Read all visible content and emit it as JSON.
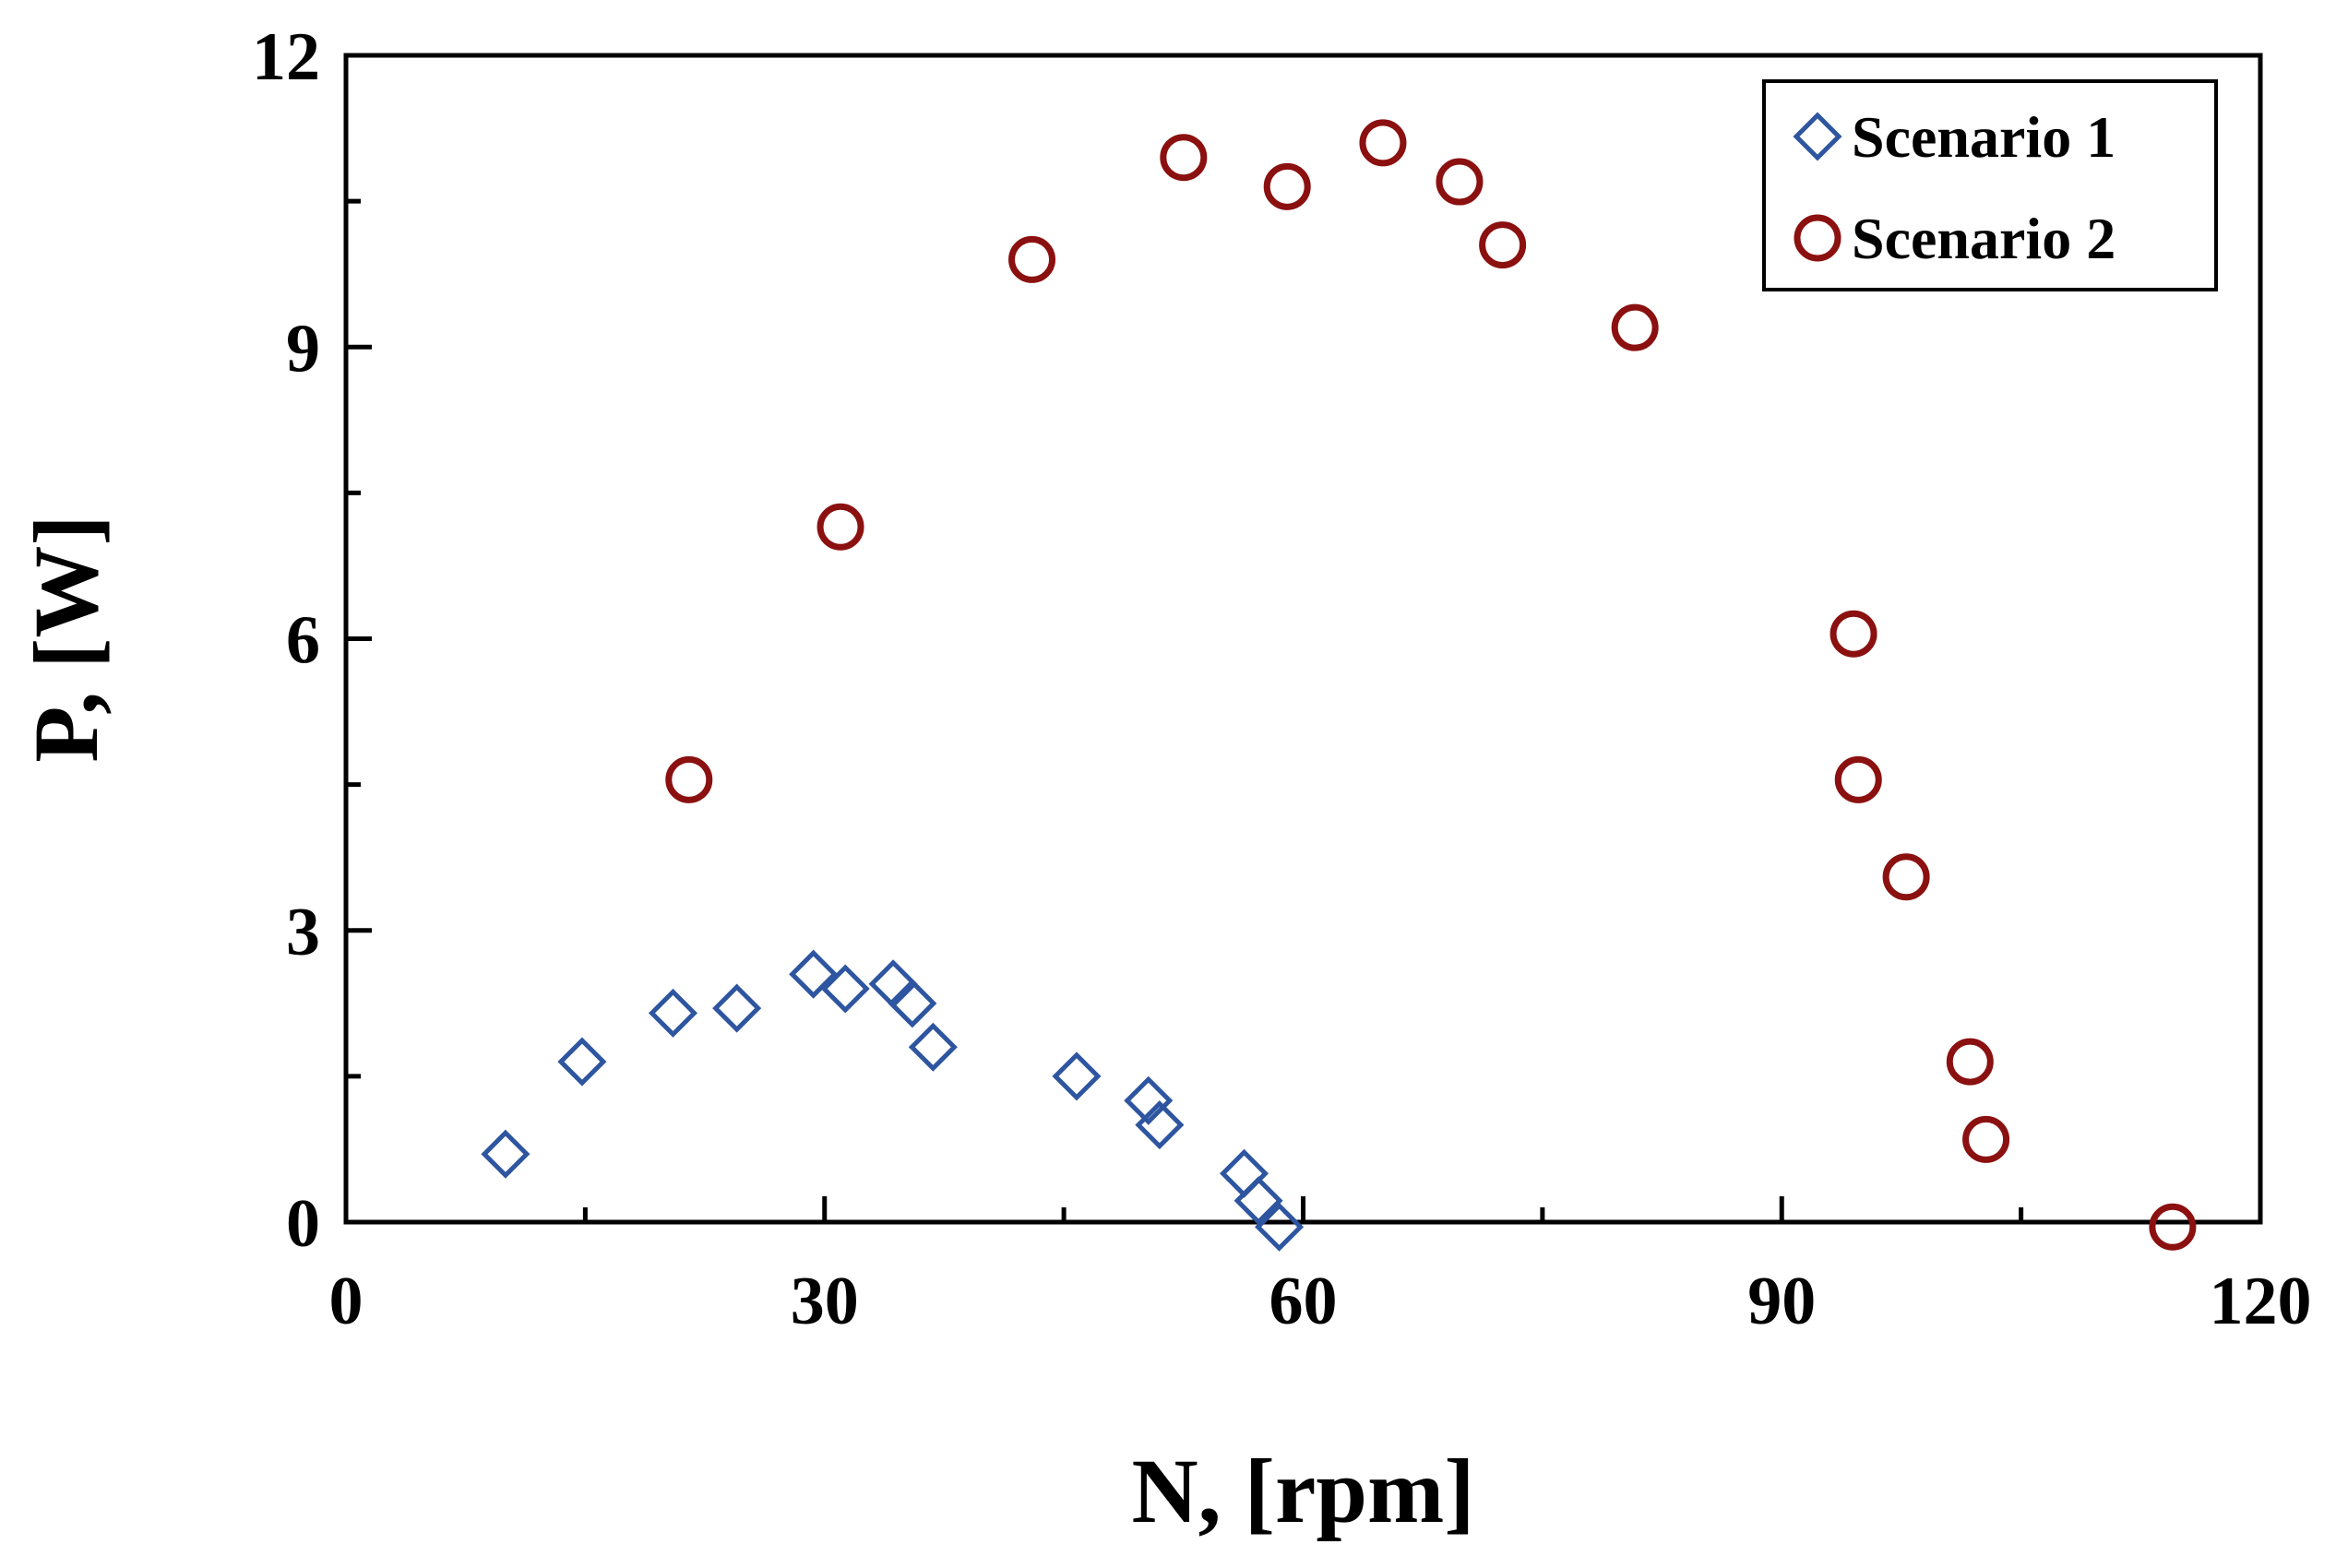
{
  "chart_data": {
    "type": "scatter",
    "title": "",
    "xlabel": "N, [rpm]",
    "ylabel": "P, [W]",
    "xlim": [
      0,
      120
    ],
    "ylim": [
      0,
      12
    ],
    "xticks": [
      0,
      30,
      60,
      90,
      120
    ],
    "yticks": [
      0,
      3,
      6,
      9,
      12
    ],
    "xtick_labels": [
      "0",
      "30",
      "60",
      "90",
      "120"
    ],
    "ytick_labels": [
      "0",
      "3",
      "6",
      "9",
      "12"
    ],
    "x_minor_step": 15,
    "y_minor_step": 1.5,
    "grid": false,
    "legend_position": "top-right",
    "series": [
      {
        "name": "Scenario 1",
        "marker": "diamond",
        "color": "#2E55A0",
        "points": [
          [
            10.0,
            0.7
          ],
          [
            14.8,
            1.65
          ],
          [
            20.5,
            2.15
          ],
          [
            24.5,
            2.2
          ],
          [
            29.3,
            2.55
          ],
          [
            31.3,
            2.4
          ],
          [
            34.3,
            2.45
          ],
          [
            35.5,
            2.25
          ],
          [
            36.8,
            1.8
          ],
          [
            45.8,
            1.5
          ],
          [
            50.3,
            1.25
          ],
          [
            51.0,
            1.0
          ],
          [
            56.3,
            0.5
          ],
          [
            57.2,
            0.22
          ],
          [
            58.5,
            -0.05
          ]
        ]
      },
      {
        "name": "Scenario 2",
        "marker": "circle",
        "color": "#8B1010",
        "points": [
          [
            21.5,
            4.55
          ],
          [
            31.0,
            7.15
          ],
          [
            43.0,
            9.9
          ],
          [
            52.5,
            10.95
          ],
          [
            59.0,
            10.65
          ],
          [
            65.0,
            11.1
          ],
          [
            69.8,
            10.7
          ],
          [
            72.5,
            10.05
          ],
          [
            80.8,
            9.2
          ],
          [
            94.5,
            6.05
          ],
          [
            94.8,
            4.55
          ],
          [
            97.8,
            3.55
          ],
          [
            101.8,
            1.65
          ],
          [
            102.8,
            0.85
          ],
          [
            114.5,
            -0.05
          ]
        ]
      }
    ]
  }
}
